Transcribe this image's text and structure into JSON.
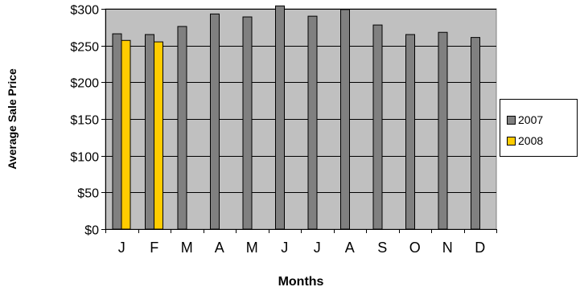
{
  "chart_data": {
    "type": "bar",
    "title": "",
    "xlabel": "Months",
    "ylabel": "Average Sale Price",
    "categories": [
      "J",
      "F",
      "M",
      "A",
      "M",
      "J",
      "J",
      "A",
      "S",
      "O",
      "N",
      "D"
    ],
    "series": [
      {
        "name": "2007",
        "color": "#808080",
        "values": [
          266,
          265,
          276,
          293,
          289,
          304,
          290,
          299,
          278,
          265,
          268,
          261
        ]
      },
      {
        "name": "2008",
        "color": "#ffcc00",
        "values": [
          257,
          255,
          null,
          null,
          null,
          null,
          null,
          null,
          null,
          null,
          null,
          null
        ]
      }
    ],
    "ylim": [
      0,
      300
    ],
    "yticks": [
      0,
      50,
      100,
      150,
      200,
      250,
      300
    ],
    "ytick_labels": [
      "$0",
      "$50",
      "$100",
      "$150",
      "$200",
      "$250",
      "$300"
    ],
    "grid": true,
    "plot_background": "#c0c0c0",
    "legend_position": "right"
  }
}
